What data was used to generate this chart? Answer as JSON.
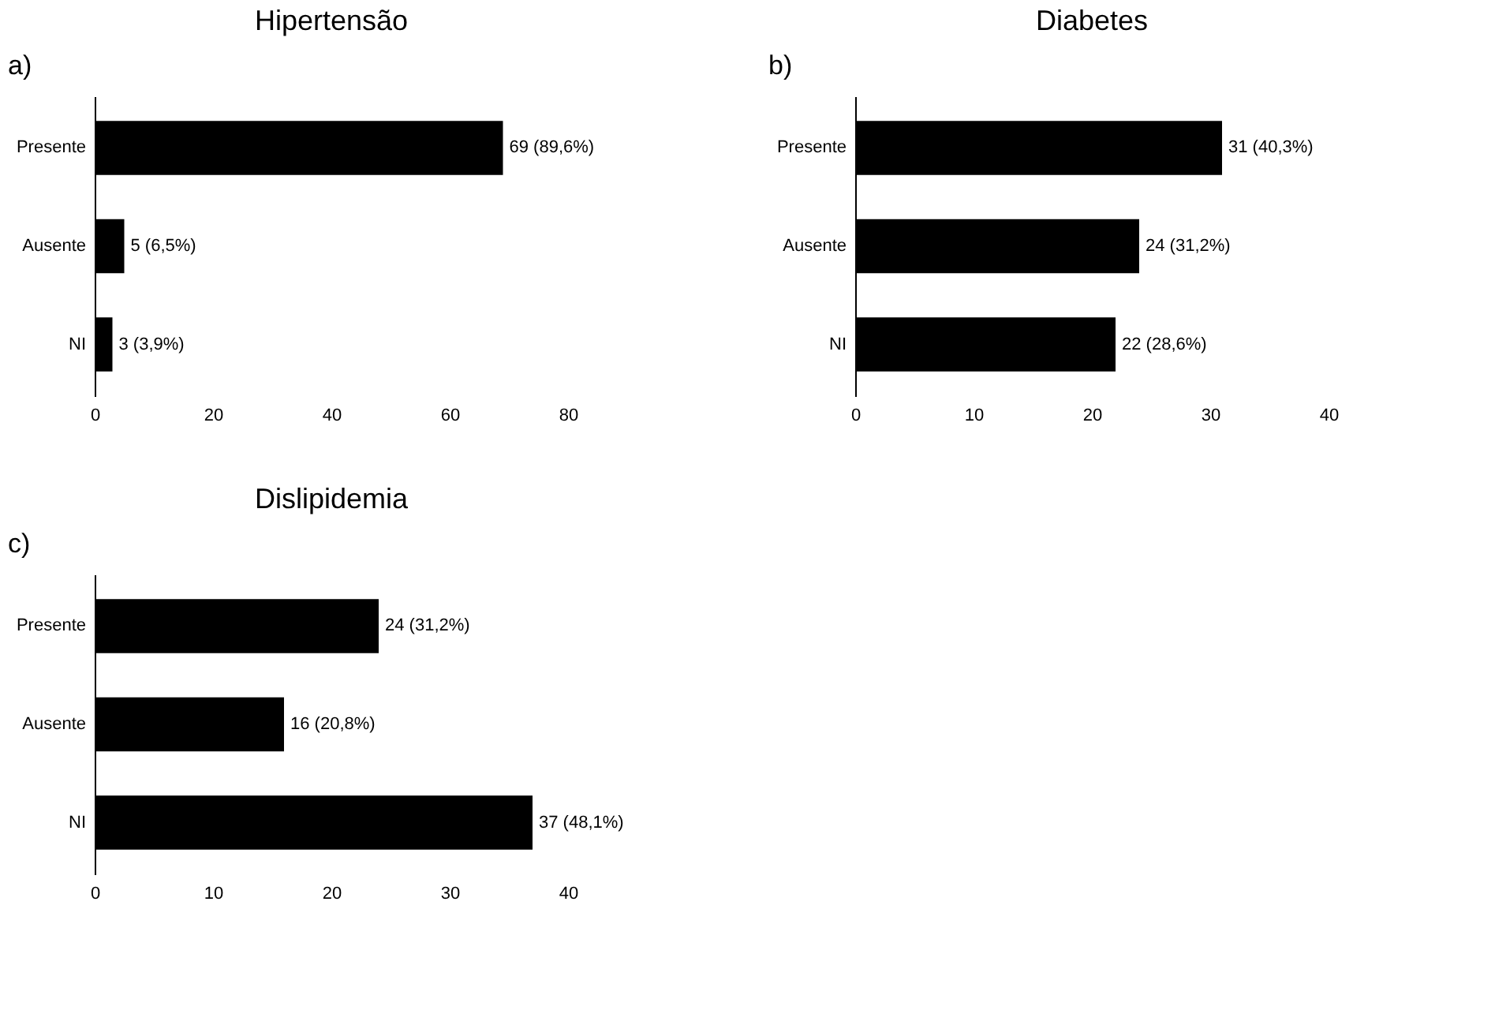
{
  "chart_data": [
    {
      "type": "bar",
      "orientation": "horizontal",
      "title": "Hipertensão",
      "annotations": [
        "a)"
      ],
      "categories": [
        "Presente",
        "Ausente",
        "NI"
      ],
      "values": [
        69,
        5,
        3
      ],
      "value_labels": [
        "69 (89,6%)",
        "5 (6,5%)",
        "3 (3,9%)"
      ],
      "color": "#000000",
      "xlim": [
        0,
        80
      ],
      "xticks": [
        0,
        20,
        40,
        60,
        80
      ],
      "grid": false
    },
    {
      "type": "bar",
      "orientation": "horizontal",
      "title": "Diabetes",
      "annotations": [
        "b)"
      ],
      "categories": [
        "Presente",
        "Ausente",
        "NI"
      ],
      "values": [
        31,
        24,
        22
      ],
      "value_labels": [
        "31 (40,3%)",
        "24 (31,2%)",
        "22 (28,6%)"
      ],
      "color": "#000000",
      "xlim": [
        0,
        40
      ],
      "xticks": [
        0,
        10,
        20,
        30,
        40
      ],
      "grid": false
    },
    {
      "type": "bar",
      "orientation": "horizontal",
      "title": "Dislipidemia",
      "annotations": [
        "c)"
      ],
      "categories": [
        "Presente",
        "Ausente",
        "NI"
      ],
      "values": [
        24,
        16,
        37
      ],
      "value_labels": [
        "24 (31,2%)",
        "16 (20,8%)",
        "37 (48,1%)"
      ],
      "color": "#000000",
      "xlim": [
        0,
        40
      ],
      "xticks": [
        0,
        10,
        20,
        30,
        40
      ],
      "grid": false
    }
  ]
}
